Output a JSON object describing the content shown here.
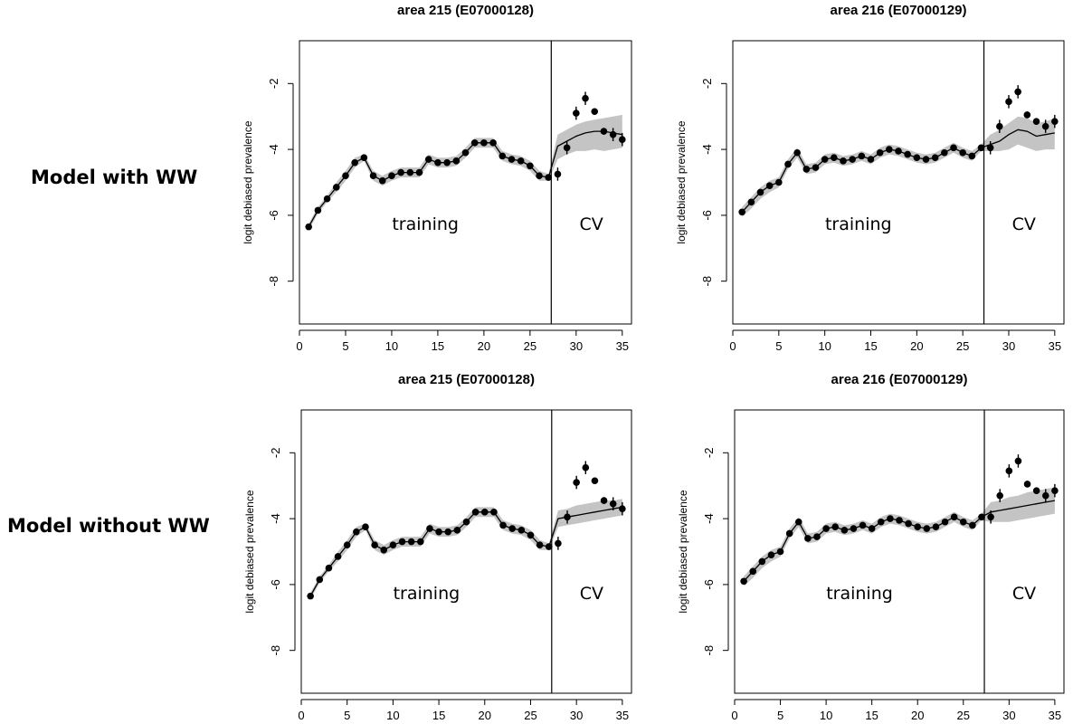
{
  "row_labels": [
    "Model with WW",
    "Model without WW"
  ],
  "chart_data": [
    {
      "type": "line",
      "title": "area 215 (E07000128)",
      "ylabel": "logit debiased prevalence",
      "xlim": [
        0,
        36
      ],
      "ylim": [
        -9.3,
        -0.7
      ],
      "x_ticks": [
        0,
        5,
        10,
        15,
        20,
        25,
        30,
        35
      ],
      "y_ticks": [
        -8,
        -6,
        -4,
        -2
      ],
      "split_x": 27.3,
      "regions": [
        "training",
        "CV"
      ],
      "observed": {
        "x": [
          1,
          2,
          3,
          4,
          5,
          6,
          7,
          8,
          9,
          10,
          11,
          12,
          13,
          14,
          15,
          16,
          17,
          18,
          19,
          20,
          21,
          22,
          23,
          24,
          25,
          26,
          27,
          28,
          29,
          30,
          31,
          32,
          33,
          34,
          35
        ],
        "y": [
          -6.35,
          -5.85,
          -5.5,
          -5.15,
          -4.8,
          -4.4,
          -4.25,
          -4.8,
          -4.95,
          -4.8,
          -4.7,
          -4.7,
          -4.7,
          -4.3,
          -4.4,
          -4.4,
          -4.35,
          -4.1,
          -3.8,
          -3.8,
          -3.8,
          -4.2,
          -4.3,
          -4.35,
          -4.5,
          -4.8,
          -4.85,
          -4.75,
          -3.95,
          -2.9,
          -2.45,
          -2.85,
          -3.45,
          -3.55,
          -3.7
        ],
        "err": [
          0,
          0,
          0,
          0,
          0,
          0,
          0,
          0,
          0,
          0,
          0,
          0,
          0,
          0,
          0,
          0,
          0,
          0,
          0,
          0,
          0,
          0,
          0,
          0,
          0,
          0,
          0,
          0.2,
          0.2,
          0.2,
          0.2,
          0.1,
          0.1,
          0.2,
          0.2
        ]
      },
      "fit": {
        "x": [
          1,
          2,
          3,
          4,
          5,
          6,
          7,
          8,
          9,
          10,
          11,
          12,
          13,
          14,
          15,
          16,
          17,
          18,
          19,
          20,
          21,
          22,
          23,
          24,
          25,
          26,
          27,
          28,
          29,
          30,
          31,
          32,
          33,
          34,
          35
        ],
        "y": [
          -6.35,
          -5.85,
          -5.5,
          -5.15,
          -4.8,
          -4.4,
          -4.25,
          -4.8,
          -4.95,
          -4.8,
          -4.7,
          -4.7,
          -4.7,
          -4.3,
          -4.4,
          -4.4,
          -4.35,
          -4.1,
          -3.8,
          -3.8,
          -3.8,
          -4.2,
          -4.3,
          -4.35,
          -4.5,
          -4.8,
          -4.85,
          -3.9,
          -3.75,
          -3.6,
          -3.5,
          -3.45,
          -3.45,
          -3.5,
          -3.55
        ],
        "lower": [
          -6.45,
          -5.95,
          -5.6,
          -5.3,
          -4.95,
          -4.55,
          -4.35,
          -4.95,
          -5.1,
          -4.95,
          -4.85,
          -4.85,
          -4.85,
          -4.45,
          -4.55,
          -4.55,
          -4.5,
          -4.25,
          -3.95,
          -3.95,
          -3.95,
          -4.35,
          -4.45,
          -4.5,
          -4.65,
          -4.95,
          -4.95,
          -4.3,
          -4.15,
          -4.05,
          -4.05,
          -4.0,
          -4.05,
          -4.0,
          -3.95
        ],
        "upper": [
          -6.25,
          -5.75,
          -5.4,
          -5.0,
          -4.65,
          -4.25,
          -4.15,
          -4.65,
          -4.8,
          -4.65,
          -4.55,
          -4.55,
          -4.55,
          -4.15,
          -4.25,
          -4.25,
          -4.2,
          -3.95,
          -3.65,
          -3.65,
          -3.65,
          -4.05,
          -4.15,
          -4.2,
          -4.35,
          -4.65,
          -4.75,
          -3.55,
          -3.4,
          -3.25,
          -3.15,
          -3.1,
          -3.05,
          -3.0,
          -2.95
        ]
      }
    },
    {
      "type": "line",
      "title": "area 216 (E07000129)",
      "ylabel": "logit debiased prevalence",
      "xlim": [
        0,
        36
      ],
      "ylim": [
        -9.3,
        -0.7
      ],
      "x_ticks": [
        0,
        5,
        10,
        15,
        20,
        25,
        30,
        35
      ],
      "y_ticks": [
        -8,
        -6,
        -4,
        -2
      ],
      "split_x": 27.3,
      "regions": [
        "training",
        "CV"
      ],
      "observed": {
        "x": [
          1,
          2,
          3,
          4,
          5,
          6,
          7,
          8,
          9,
          10,
          11,
          12,
          13,
          14,
          15,
          16,
          17,
          18,
          19,
          20,
          21,
          22,
          23,
          24,
          25,
          26,
          27,
          28,
          29,
          30,
          31,
          32,
          33,
          34,
          35
        ],
        "y": [
          -5.9,
          -5.6,
          -5.3,
          -5.1,
          -5.0,
          -4.45,
          -4.1,
          -4.6,
          -4.55,
          -4.3,
          -4.25,
          -4.35,
          -4.3,
          -4.2,
          -4.3,
          -4.1,
          -4.0,
          -4.05,
          -4.15,
          -4.25,
          -4.3,
          -4.25,
          -4.1,
          -3.95,
          -4.1,
          -4.2,
          -3.95,
          -3.95,
          -3.3,
          -2.55,
          -2.25,
          -2.95,
          -3.15,
          -3.3,
          -3.15
        ],
        "err": [
          0,
          0,
          0,
          0,
          0,
          0,
          0,
          0,
          0,
          0,
          0,
          0,
          0,
          0,
          0,
          0,
          0,
          0,
          0,
          0,
          0,
          0,
          0,
          0,
          0,
          0,
          0,
          0.2,
          0.2,
          0.2,
          0.2,
          0.1,
          0.1,
          0.2,
          0.2
        ]
      },
      "fit": {
        "x": [
          1,
          2,
          3,
          4,
          5,
          6,
          7,
          8,
          9,
          10,
          11,
          12,
          13,
          14,
          15,
          16,
          17,
          18,
          19,
          20,
          21,
          22,
          23,
          24,
          25,
          26,
          27,
          28,
          29,
          30,
          31,
          32,
          33,
          34,
          35
        ],
        "y": [
          -5.9,
          -5.6,
          -5.3,
          -5.1,
          -5.0,
          -4.45,
          -4.1,
          -4.6,
          -4.55,
          -4.3,
          -4.25,
          -4.35,
          -4.3,
          -4.2,
          -4.3,
          -4.1,
          -4.0,
          -4.05,
          -4.15,
          -4.25,
          -4.3,
          -4.25,
          -4.1,
          -3.95,
          -4.1,
          -4.2,
          -3.95,
          -3.85,
          -3.75,
          -3.55,
          -3.4,
          -3.45,
          -3.6,
          -3.55,
          -3.5
        ],
        "lower": [
          -6.05,
          -5.8,
          -5.5,
          -5.3,
          -5.15,
          -4.6,
          -4.25,
          -4.75,
          -4.7,
          -4.45,
          -4.4,
          -4.5,
          -4.45,
          -4.35,
          -4.45,
          -4.25,
          -4.15,
          -4.2,
          -4.3,
          -4.4,
          -4.45,
          -4.4,
          -4.25,
          -4.1,
          -4.25,
          -4.35,
          -4.05,
          -4.05,
          -4.05,
          -4.0,
          -3.85,
          -3.95,
          -4.05,
          -4.0,
          -4.0
        ],
        "upper": [
          -5.75,
          -5.45,
          -5.15,
          -4.95,
          -4.85,
          -4.3,
          -3.95,
          -4.45,
          -4.4,
          -4.15,
          -4.1,
          -4.2,
          -4.15,
          -4.05,
          -4.15,
          -3.95,
          -3.85,
          -3.9,
          -4.0,
          -4.1,
          -4.15,
          -4.1,
          -3.95,
          -3.8,
          -3.95,
          -4.05,
          -3.85,
          -3.55,
          -3.4,
          -3.2,
          -3.0,
          -3.05,
          -3.2,
          -3.15,
          -3.05
        ]
      }
    },
    {
      "type": "line",
      "title": "area 215 (E07000128)",
      "ylabel": "logit debiased prevalence",
      "xlim": [
        0,
        36
      ],
      "ylim": [
        -9.3,
        -0.7
      ],
      "x_ticks": [
        0,
        5,
        10,
        15,
        20,
        25,
        30,
        35
      ],
      "y_ticks": [
        -8,
        -6,
        -4,
        -2
      ],
      "split_x": 27.3,
      "regions": [
        "training",
        "CV"
      ],
      "observed": {
        "x": [
          1,
          2,
          3,
          4,
          5,
          6,
          7,
          8,
          9,
          10,
          11,
          12,
          13,
          14,
          15,
          16,
          17,
          18,
          19,
          20,
          21,
          22,
          23,
          24,
          25,
          26,
          27,
          28,
          29,
          30,
          31,
          32,
          33,
          34,
          35
        ],
        "y": [
          -6.35,
          -5.85,
          -5.5,
          -5.15,
          -4.8,
          -4.4,
          -4.25,
          -4.8,
          -4.95,
          -4.8,
          -4.7,
          -4.7,
          -4.7,
          -4.3,
          -4.4,
          -4.4,
          -4.35,
          -4.1,
          -3.8,
          -3.8,
          -3.8,
          -4.2,
          -4.3,
          -4.35,
          -4.5,
          -4.8,
          -4.85,
          -4.75,
          -3.95,
          -2.9,
          -2.45,
          -2.85,
          -3.45,
          -3.55,
          -3.7
        ],
        "err": [
          0,
          0,
          0,
          0,
          0,
          0,
          0,
          0,
          0,
          0,
          0,
          0,
          0,
          0,
          0,
          0,
          0,
          0,
          0,
          0,
          0,
          0,
          0,
          0,
          0,
          0,
          0,
          0.2,
          0.2,
          0.2,
          0.2,
          0.1,
          0.1,
          0.2,
          0.2
        ]
      },
      "fit": {
        "x": [
          1,
          2,
          3,
          4,
          5,
          6,
          7,
          8,
          9,
          10,
          11,
          12,
          13,
          14,
          15,
          16,
          17,
          18,
          19,
          20,
          21,
          22,
          23,
          24,
          25,
          26,
          27,
          28,
          29,
          30,
          31,
          32,
          33,
          34,
          35
        ],
        "y": [
          -6.35,
          -5.85,
          -5.5,
          -5.15,
          -4.8,
          -4.4,
          -4.25,
          -4.8,
          -4.95,
          -4.8,
          -4.7,
          -4.7,
          -4.7,
          -4.3,
          -4.4,
          -4.4,
          -4.35,
          -4.1,
          -3.8,
          -3.8,
          -3.8,
          -4.2,
          -4.3,
          -4.35,
          -4.5,
          -4.8,
          -4.85,
          -4.0,
          -3.95,
          -3.9,
          -3.85,
          -3.8,
          -3.75,
          -3.7,
          -3.65
        ],
        "lower": [
          -6.45,
          -5.95,
          -5.6,
          -5.3,
          -4.95,
          -4.55,
          -4.35,
          -4.95,
          -5.1,
          -4.95,
          -4.85,
          -4.85,
          -4.85,
          -4.45,
          -4.55,
          -4.55,
          -4.5,
          -4.25,
          -3.95,
          -3.95,
          -3.95,
          -4.35,
          -4.45,
          -4.5,
          -4.65,
          -4.95,
          -4.95,
          -4.25,
          -4.2,
          -4.15,
          -4.1,
          -4.05,
          -4.0,
          -3.95,
          -3.9
        ],
        "upper": [
          -6.25,
          -5.75,
          -5.4,
          -5.0,
          -4.65,
          -4.25,
          -4.15,
          -4.65,
          -4.8,
          -4.65,
          -4.55,
          -4.55,
          -4.55,
          -4.15,
          -4.25,
          -4.25,
          -4.2,
          -3.95,
          -3.65,
          -3.65,
          -3.65,
          -4.05,
          -4.15,
          -4.2,
          -4.35,
          -4.65,
          -4.75,
          -3.75,
          -3.7,
          -3.6,
          -3.55,
          -3.5,
          -3.45,
          -3.45,
          -3.4
        ]
      }
    },
    {
      "type": "line",
      "title": "area 216 (E07000129)",
      "ylabel": "logit debiased prevalence",
      "xlim": [
        0,
        36
      ],
      "ylim": [
        -9.3,
        -0.7
      ],
      "x_ticks": [
        0,
        5,
        10,
        15,
        20,
        25,
        30,
        35
      ],
      "y_ticks": [
        -8,
        -6,
        -4,
        -2
      ],
      "split_x": 27.3,
      "regions": [
        "training",
        "CV"
      ],
      "observed": {
        "x": [
          1,
          2,
          3,
          4,
          5,
          6,
          7,
          8,
          9,
          10,
          11,
          12,
          13,
          14,
          15,
          16,
          17,
          18,
          19,
          20,
          21,
          22,
          23,
          24,
          25,
          26,
          27,
          28,
          29,
          30,
          31,
          32,
          33,
          34,
          35
        ],
        "y": [
          -5.9,
          -5.6,
          -5.3,
          -5.1,
          -5.0,
          -4.45,
          -4.1,
          -4.6,
          -4.55,
          -4.3,
          -4.25,
          -4.35,
          -4.3,
          -4.2,
          -4.3,
          -4.1,
          -4.0,
          -4.05,
          -4.15,
          -4.25,
          -4.3,
          -4.25,
          -4.1,
          -3.95,
          -4.1,
          -4.2,
          -3.95,
          -3.95,
          -3.3,
          -2.55,
          -2.25,
          -2.95,
          -3.15,
          -3.3,
          -3.15
        ],
        "err": [
          0,
          0,
          0,
          0,
          0,
          0,
          0,
          0,
          0,
          0,
          0,
          0,
          0,
          0,
          0,
          0,
          0,
          0,
          0,
          0,
          0,
          0,
          0,
          0,
          0,
          0,
          0,
          0.2,
          0.2,
          0.2,
          0.2,
          0.1,
          0.1,
          0.2,
          0.2
        ]
      },
      "fit": {
        "x": [
          1,
          2,
          3,
          4,
          5,
          6,
          7,
          8,
          9,
          10,
          11,
          12,
          13,
          14,
          15,
          16,
          17,
          18,
          19,
          20,
          21,
          22,
          23,
          24,
          25,
          26,
          27,
          28,
          29,
          30,
          31,
          32,
          33,
          34,
          35
        ],
        "y": [
          -5.9,
          -5.6,
          -5.3,
          -5.1,
          -5.0,
          -4.45,
          -4.1,
          -4.6,
          -4.55,
          -4.3,
          -4.25,
          -4.35,
          -4.3,
          -4.2,
          -4.3,
          -4.1,
          -4.0,
          -4.05,
          -4.15,
          -4.25,
          -4.3,
          -4.25,
          -4.1,
          -3.95,
          -4.1,
          -4.2,
          -3.95,
          -3.8,
          -3.75,
          -3.7,
          -3.65,
          -3.6,
          -3.55,
          -3.5,
          -3.45
        ],
        "lower": [
          -6.05,
          -5.8,
          -5.5,
          -5.3,
          -5.15,
          -4.6,
          -4.25,
          -4.75,
          -4.7,
          -4.45,
          -4.4,
          -4.5,
          -4.45,
          -4.35,
          -4.45,
          -4.25,
          -4.15,
          -4.2,
          -4.3,
          -4.4,
          -4.45,
          -4.4,
          -4.25,
          -4.1,
          -4.25,
          -4.35,
          -4.05,
          -4.1,
          -4.1,
          -4.1,
          -4.05,
          -4.0,
          -3.95,
          -3.9,
          -3.85
        ],
        "upper": [
          -5.75,
          -5.45,
          -5.15,
          -4.95,
          -4.85,
          -4.3,
          -3.95,
          -4.45,
          -4.4,
          -4.15,
          -4.1,
          -4.2,
          -4.15,
          -4.05,
          -4.15,
          -3.95,
          -3.85,
          -3.9,
          -4.0,
          -4.1,
          -4.15,
          -4.1,
          -3.95,
          -3.8,
          -3.95,
          -4.05,
          -3.85,
          -3.5,
          -3.45,
          -3.35,
          -3.3,
          -3.2,
          -3.15,
          -3.1,
          -3.05
        ]
      }
    }
  ],
  "colors": {
    "band": "#c4c4c4",
    "ink": "#000000"
  }
}
